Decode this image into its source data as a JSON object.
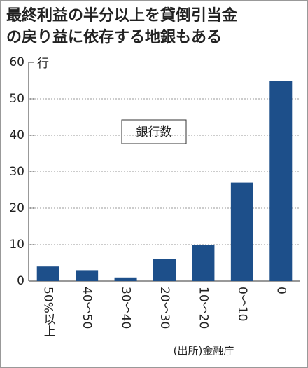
{
  "chart_data": {
    "type": "bar",
    "title": [
      "最終利益の半分以上を貸倒引当金",
      "の戻り益に依存する地銀もある"
    ],
    "y_unit": "行",
    "annotation": "銀行数",
    "source": "(出所)金融庁",
    "categories": [
      "50%以上",
      "40〜50",
      "30〜40",
      "20〜30",
      "10〜20",
      "0〜10",
      "0"
    ],
    "values": [
      4,
      3,
      1,
      6,
      10,
      27,
      55
    ],
    "color": "#1d4f8a",
    "ylim": [
      0,
      60
    ],
    "yticks": [
      0,
      10,
      20,
      30,
      40,
      50,
      60
    ],
    "grid": true
  }
}
